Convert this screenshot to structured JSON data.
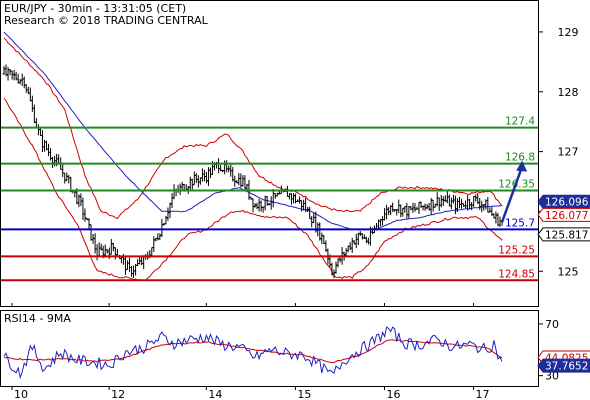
{
  "header": {
    "line1": "EUR/JPY - 30min - 13:31:05 (CET)",
    "line2": "Research © 2018 TRADING CENTRAL"
  },
  "rsi_label": "RSI14 - 9MA",
  "colors": {
    "price": "#000000",
    "bollinger": "#d00000",
    "ma": "#2020c0",
    "resistance": "#1f8a1f",
    "pivot": "#0000cc",
    "support": "#cc0000",
    "arrow": "#1a2fa0",
    "rsi": "#2020c0",
    "rsi_ma": "#cc0000"
  },
  "chart_data": [
    {
      "type": "line",
      "title": "EUR/JPY - 30min - 13:31:05 (CET)",
      "x_tick_labels": [
        "10",
        "12",
        "14",
        "15",
        "16",
        "17"
      ],
      "x_tick_index": [
        0,
        48,
        96,
        140,
        184,
        228
      ],
      "ylim": [
        124.42,
        129.5
      ],
      "y_tick_labels": [
        "129",
        "128",
        "127",
        "126",
        "125"
      ],
      "y_tick_values": [
        129,
        128,
        127,
        126,
        125
      ],
      "levels": [
        {
          "value": 127.4,
          "label": "127.4",
          "role": "resistance"
        },
        {
          "value": 126.8,
          "label": "126.8",
          "role": "resistance"
        },
        {
          "value": 126.35,
          "label": "126.35",
          "role": "resistance"
        },
        {
          "value": 125.7,
          "label": "125.7",
          "role": "pivot"
        },
        {
          "value": 125.25,
          "label": "125.25",
          "role": "support"
        },
        {
          "value": 124.85,
          "label": "124.85",
          "role": "support"
        }
      ],
      "price_tags": [
        {
          "value": 126.096,
          "label": "126.096",
          "style": "blue"
        },
        {
          "value": 126.077,
          "label": "126.077",
          "style": "red"
        },
        {
          "value": 125.817,
          "label": "125.817",
          "style": "black"
        }
      ],
      "close_anchors": [
        [
          0,
          128.3
        ],
        [
          10,
          128.2
        ],
        [
          18,
          127.2
        ],
        [
          24,
          126.9
        ],
        [
          30,
          126.6
        ],
        [
          38,
          126.1
        ],
        [
          46,
          125.3
        ],
        [
          54,
          125.4
        ],
        [
          62,
          125.0
        ],
        [
          70,
          125.2
        ],
        [
          76,
          125.6
        ],
        [
          84,
          126.3
        ],
        [
          92,
          126.5
        ],
        [
          100,
          126.6
        ],
        [
          106,
          126.8
        ],
        [
          112,
          126.6
        ],
        [
          118,
          126.5
        ],
        [
          124,
          126.1
        ],
        [
          132,
          126.2
        ],
        [
          140,
          126.3
        ],
        [
          148,
          126.1
        ],
        [
          152,
          125.9
        ],
        [
          158,
          125.5
        ],
        [
          162,
          125.0
        ],
        [
          166,
          125.2
        ],
        [
          172,
          125.5
        ],
        [
          176,
          125.6
        ],
        [
          180,
          125.5
        ],
        [
          186,
          125.9
        ],
        [
          192,
          126.1
        ],
        [
          200,
          126.0
        ],
        [
          208,
          126.1
        ],
        [
          216,
          126.2
        ],
        [
          224,
          126.1
        ],
        [
          232,
          126.2
        ],
        [
          238,
          126.1
        ],
        [
          242,
          125.9
        ],
        [
          246,
          125.82
        ]
      ],
      "bollinger_upper_anchors": [
        [
          0,
          128.9
        ],
        [
          20,
          128.2
        ],
        [
          30,
          127.7
        ],
        [
          40,
          126.6
        ],
        [
          48,
          126.0
        ],
        [
          56,
          125.9
        ],
        [
          66,
          126.2
        ],
        [
          80,
          126.9
        ],
        [
          90,
          127.1
        ],
        [
          100,
          127.1
        ],
        [
          110,
          127.3
        ],
        [
          118,
          127.0
        ],
        [
          126,
          126.6
        ],
        [
          136,
          126.4
        ],
        [
          146,
          126.3
        ],
        [
          156,
          126.1
        ],
        [
          166,
          126.0
        ],
        [
          176,
          126.0
        ],
        [
          186,
          126.3
        ],
        [
          196,
          126.4
        ],
        [
          208,
          126.4
        ],
        [
          220,
          126.35
        ],
        [
          230,
          126.3
        ],
        [
          240,
          126.35
        ],
        [
          246,
          126.1
        ]
      ],
      "bollinger_lower_anchors": [
        [
          0,
          127.9
        ],
        [
          14,
          127.1
        ],
        [
          26,
          126.3
        ],
        [
          36,
          125.8
        ],
        [
          46,
          125.0
        ],
        [
          58,
          124.9
        ],
        [
          70,
          124.85
        ],
        [
          80,
          125.2
        ],
        [
          90,
          125.6
        ],
        [
          100,
          125.7
        ],
        [
          112,
          126.0
        ],
        [
          120,
          126.0
        ],
        [
          130,
          125.9
        ],
        [
          140,
          125.9
        ],
        [
          150,
          125.6
        ],
        [
          156,
          125.3
        ],
        [
          164,
          124.9
        ],
        [
          172,
          124.9
        ],
        [
          180,
          125.1
        ],
        [
          188,
          125.5
        ],
        [
          198,
          125.7
        ],
        [
          210,
          125.8
        ],
        [
          222,
          125.9
        ],
        [
          234,
          125.9
        ],
        [
          246,
          125.5
        ]
      ],
      "ma_anchors": [
        [
          0,
          129.0
        ],
        [
          20,
          128.3
        ],
        [
          40,
          127.4
        ],
        [
          60,
          126.6
        ],
        [
          78,
          126.0
        ],
        [
          90,
          126.0
        ],
        [
          104,
          126.3
        ],
        [
          116,
          126.4
        ],
        [
          128,
          126.2
        ],
        [
          140,
          126.1
        ],
        [
          152,
          126.0
        ],
        [
          162,
          125.8
        ],
        [
          172,
          125.7
        ],
        [
          184,
          125.7
        ],
        [
          194,
          125.85
        ],
        [
          206,
          125.9
        ],
        [
          218,
          126.0
        ],
        [
          230,
          126.05
        ],
        [
          238,
          126.08
        ],
        [
          246,
          126.1
        ]
      ],
      "forecast_arrow": {
        "from": [
          246,
          125.82
        ],
        "to": [
          252,
          126.85
        ]
      }
    },
    {
      "type": "line",
      "title": "RSI14 - 9MA",
      "ylim": [
        22,
        80
      ],
      "y_tick_labels": [
        "70",
        "30"
      ],
      "y_tick_values": [
        70,
        30
      ],
      "price_tags": [
        {
          "value": 44.0825,
          "label": "44.0825",
          "style": "red"
        },
        {
          "value": 37.7652,
          "label": "37.7652",
          "style": "blue"
        }
      ],
      "rsi_anchors": [
        [
          0,
          45
        ],
        [
          8,
          32
        ],
        [
          14,
          52
        ],
        [
          20,
          35
        ],
        [
          28,
          48
        ],
        [
          36,
          42
        ],
        [
          46,
          40
        ],
        [
          52,
          38
        ],
        [
          60,
          48
        ],
        [
          70,
          52
        ],
        [
          78,
          60
        ],
        [
          84,
          55
        ],
        [
          92,
          58
        ],
        [
          100,
          60
        ],
        [
          108,
          54
        ],
        [
          116,
          52
        ],
        [
          124,
          44
        ],
        [
          132,
          50
        ],
        [
          140,
          47
        ],
        [
          148,
          46
        ],
        [
          154,
          40
        ],
        [
          162,
          30
        ],
        [
          168,
          42
        ],
        [
          176,
          50
        ],
        [
          184,
          58
        ],
        [
          190,
          66
        ],
        [
          198,
          55
        ],
        [
          206,
          54
        ],
        [
          214,
          58
        ],
        [
          222,
          52
        ],
        [
          230,
          54
        ],
        [
          238,
          50
        ],
        [
          242,
          55
        ],
        [
          246,
          38
        ]
      ],
      "rsi_ma_anchors": [
        [
          0,
          44
        ],
        [
          14,
          42
        ],
        [
          28,
          43
        ],
        [
          46,
          41
        ],
        [
          60,
          44
        ],
        [
          78,
          54
        ],
        [
          100,
          56
        ],
        [
          116,
          52
        ],
        [
          132,
          48
        ],
        [
          148,
          46
        ],
        [
          162,
          40
        ],
        [
          176,
          46
        ],
        [
          190,
          58
        ],
        [
          206,
          56
        ],
        [
          222,
          54
        ],
        [
          238,
          52
        ],
        [
          246,
          44
        ]
      ]
    }
  ]
}
